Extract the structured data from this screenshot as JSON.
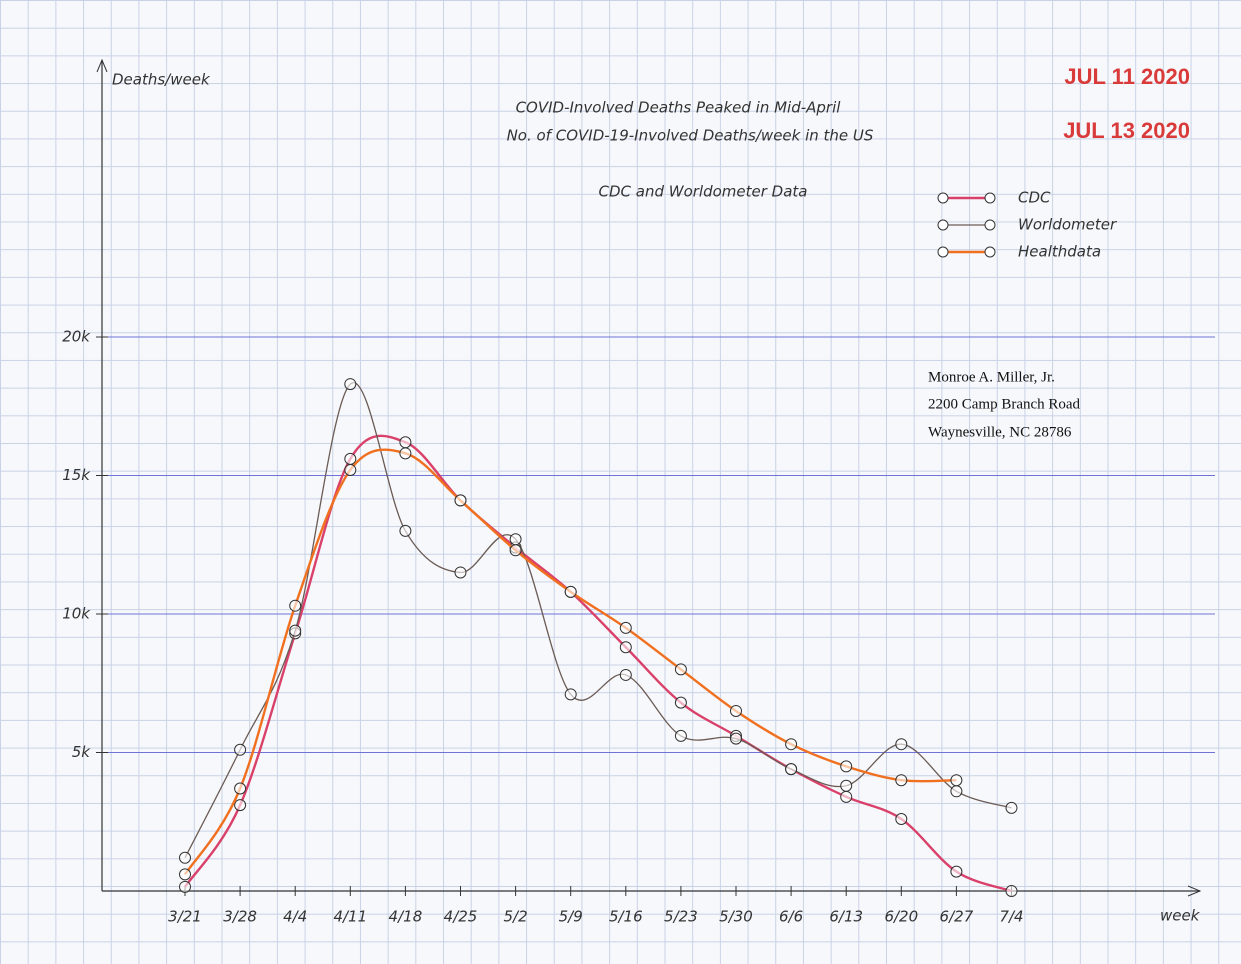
{
  "chart_data": {
    "type": "line",
    "title": "COVID-Involved Deaths Peaked in Mid-April",
    "subtitle": "No. of COVID-19-Involved Deaths/week in the US",
    "note": "CDC and Worldometer Data",
    "y_label": "Deaths/week",
    "x_label": "week",
    "categories": [
      "3/21",
      "3/28",
      "4/4",
      "4/11",
      "4/18",
      "4/25",
      "5/2",
      "5/9",
      "5/16",
      "5/23",
      "5/30",
      "6/6",
      "6/13",
      "6/20",
      "6/27",
      "7/4"
    ],
    "series": [
      {
        "name": "CDC",
        "color": "#d9406a",
        "values": [
          150,
          3100,
          9300,
          15600,
          16200,
          14100,
          12400,
          10800,
          8800,
          6800,
          5600,
          4400,
          3400,
          2600,
          700,
          0
        ]
      },
      {
        "name": "Worldometer",
        "color": "#6b5b55",
        "values": [
          1200,
          5100,
          9400,
          18300,
          13000,
          11500,
          12700,
          7100,
          7800,
          5600,
          5500,
          4400,
          3800,
          5300,
          3600,
          3000
        ]
      },
      {
        "name": "Healthdata",
        "color": "#f07020",
        "values": [
          600,
          3700,
          10300,
          15200,
          15800,
          14100,
          12300,
          10800,
          9500,
          8000,
          6500,
          5300,
          4500,
          4000,
          4000,
          null
        ]
      }
    ],
    "ylim": [
      0,
      30000
    ],
    "yticks": [
      {
        "value": 5000,
        "label": "5k"
      },
      {
        "value": 10000,
        "label": "10k"
      },
      {
        "value": 15000,
        "label": "15k"
      },
      {
        "value": 20000,
        "label": "20k"
      }
    ],
    "grid": true,
    "legend": "upper right"
  },
  "stamps": [
    "JUL 11 2020",
    "JUL 13 2020"
  ],
  "address": [
    "Monroe A. Miller, Jr.",
    "2200 Camp Branch Road",
    "Waynesville, NC 28786"
  ]
}
